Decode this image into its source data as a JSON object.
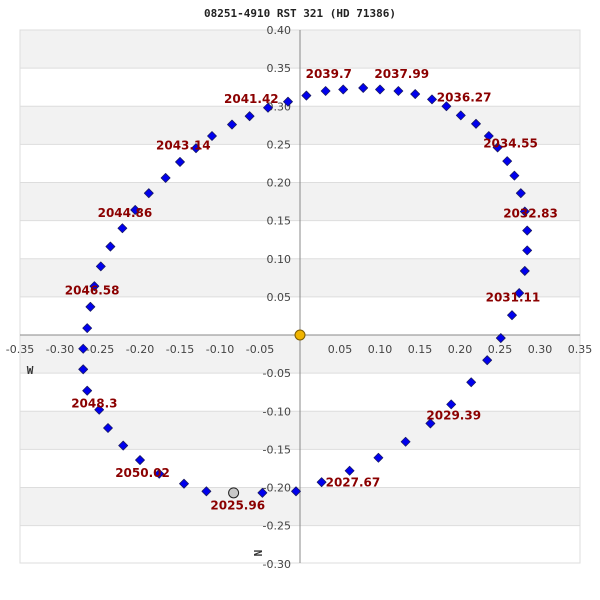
{
  "chart_data": {
    "type": "scatter",
    "title": "08251-4910 RST 321 (HD 71386)",
    "xlabel": "W",
    "ylabel": "N",
    "xlim": [
      -0.35,
      0.35
    ],
    "ylim": [
      -0.3,
      0.4
    ],
    "x_ticks": [
      "-0.35",
      "-0.30",
      "-0.25",
      "-0.20",
      "-0.15",
      "-0.10",
      "-0.05",
      "0.05",
      "0.10",
      "0.15",
      "0.20",
      "0.25",
      "0.30",
      "0.35"
    ],
    "y_ticks": [
      "0.40",
      "0.35",
      "0.30",
      "0.25",
      "0.20",
      "0.15",
      "0.10",
      "0.05",
      "-0.05",
      "-0.10",
      "-0.15",
      "-0.20",
      "-0.25",
      "-0.30"
    ],
    "grid": "horizontal bands",
    "colors": {
      "orbit_point": "#0000ee",
      "primary_star": "#f0b400",
      "current_position": "#c8c8c8",
      "label": "#8b0000",
      "band": "#f2f2f2",
      "gridline": "#dddddd",
      "axis": "#888888"
    },
    "primary": {
      "x": 0.0,
      "y": 0.0
    },
    "current_position": {
      "x": -0.083,
      "y": -0.207,
      "label": "2025.96"
    },
    "series": [
      {
        "name": "orbit",
        "points": [
          [
            -0.005,
            -0.205
          ],
          [
            -0.047,
            -0.207
          ],
          [
            -0.117,
            -0.205
          ],
          [
            -0.145,
            -0.195
          ],
          [
            -0.176,
            -0.182
          ],
          [
            -0.2,
            -0.164
          ],
          [
            -0.221,
            -0.145
          ],
          [
            -0.24,
            -0.122
          ],
          [
            -0.251,
            -0.098
          ],
          [
            -0.266,
            -0.073
          ],
          [
            -0.271,
            -0.045
          ],
          [
            -0.271,
            -0.018
          ],
          [
            -0.266,
            0.009
          ],
          [
            -0.262,
            0.037
          ],
          [
            -0.257,
            0.064
          ],
          [
            -0.249,
            0.09
          ],
          [
            -0.237,
            0.116
          ],
          [
            -0.222,
            0.14
          ],
          [
            -0.206,
            0.164
          ],
          [
            -0.189,
            0.186
          ],
          [
            -0.168,
            0.206
          ],
          [
            -0.15,
            0.227
          ],
          [
            -0.13,
            0.245
          ],
          [
            -0.11,
            0.261
          ],
          [
            -0.085,
            0.276
          ],
          [
            -0.063,
            0.287
          ],
          [
            -0.04,
            0.298
          ],
          [
            -0.015,
            0.306
          ],
          [
            0.008,
            0.314
          ],
          [
            0.032,
            0.32
          ],
          [
            0.054,
            0.322
          ],
          [
            0.079,
            0.324
          ],
          [
            0.1,
            0.322
          ],
          [
            0.123,
            0.32
          ],
          [
            0.144,
            0.316
          ],
          [
            0.165,
            0.309
          ],
          [
            0.183,
            0.3
          ],
          [
            0.201,
            0.288
          ],
          [
            0.22,
            0.277
          ],
          [
            0.236,
            0.261
          ],
          [
            0.247,
            0.246
          ],
          [
            0.259,
            0.228
          ],
          [
            0.268,
            0.209
          ],
          [
            0.276,
            0.186
          ],
          [
            0.281,
            0.162
          ],
          [
            0.284,
            0.137
          ],
          [
            0.284,
            0.111
          ],
          [
            0.281,
            0.084
          ],
          [
            0.274,
            0.055
          ],
          [
            0.265,
            0.026
          ],
          [
            0.251,
            -0.004
          ],
          [
            0.234,
            -0.033
          ],
          [
            0.214,
            -0.062
          ],
          [
            0.189,
            -0.091
          ],
          [
            0.163,
            -0.116
          ],
          [
            0.132,
            -0.14
          ],
          [
            0.098,
            -0.161
          ],
          [
            0.062,
            -0.178
          ],
          [
            0.027,
            -0.193
          ]
        ]
      }
    ],
    "annotations": [
      {
        "text": "2039.7",
        "x": 0.007,
        "y": 0.337
      },
      {
        "text": "2037.99",
        "x": 0.093,
        "y": 0.337
      },
      {
        "text": "2036.27",
        "x": 0.171,
        "y": 0.306
      },
      {
        "text": "2041.42",
        "x": -0.095,
        "y": 0.304
      },
      {
        "text": "2034.55",
        "x": 0.229,
        "y": 0.246
      },
      {
        "text": "2043.14",
        "x": -0.18,
        "y": 0.243
      },
      {
        "text": "2032.83",
        "x": 0.254,
        "y": 0.154
      },
      {
        "text": "2044.86",
        "x": -0.253,
        "y": 0.155
      },
      {
        "text": "2031.11",
        "x": 0.232,
        "y": 0.044
      },
      {
        "text": "2046.58",
        "x": -0.294,
        "y": 0.053
      },
      {
        "text": "2048.3",
        "x": -0.286,
        "y": -0.095
      },
      {
        "text": "2029.39",
        "x": 0.158,
        "y": -0.111
      },
      {
        "text": "2050.02",
        "x": -0.231,
        "y": -0.186
      },
      {
        "text": "2027.67",
        "x": 0.032,
        "y": -0.199
      },
      {
        "text": "2025.96",
        "x": -0.112,
        "y": -0.229
      }
    ]
  }
}
